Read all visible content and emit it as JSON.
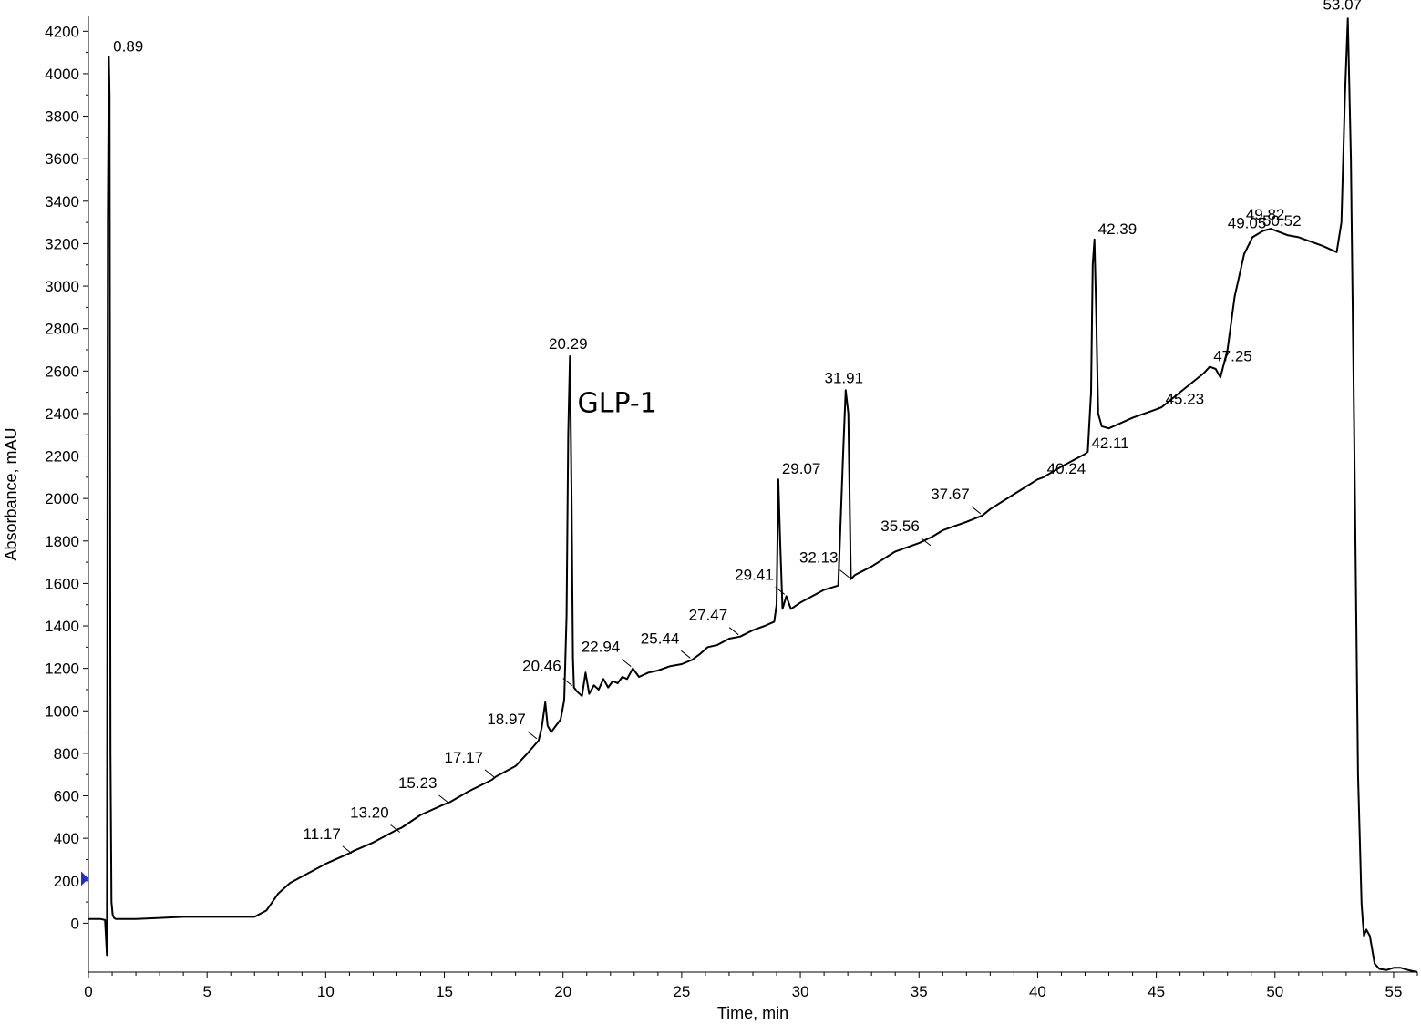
{
  "chart_data": {
    "type": "line",
    "xlabel": "Time, min",
    "ylabel": "Absorbance, mAU",
    "xlim": [
      0,
      56
    ],
    "ylim": [
      -230,
      4270
    ],
    "x_ticks": [
      0,
      5,
      10,
      15,
      20,
      25,
      30,
      35,
      40,
      45,
      50,
      55
    ],
    "y_ticks": [
      0,
      200,
      400,
      600,
      800,
      1000,
      1200,
      1400,
      1600,
      1800,
      2000,
      2200,
      2400,
      2600,
      2800,
      3000,
      3200,
      3400,
      3600,
      3800,
      4000,
      4200
    ],
    "grid": false,
    "line_color": "#000000",
    "marker_color": "#1f2fd0",
    "marker_y": 210,
    "annotation": {
      "text": "GLP-1",
      "x": 20.3,
      "y": 2450
    },
    "peaks": [
      {
        "label": "0.89",
        "x": 0.89,
        "y": 4080
      },
      {
        "label": "11.17",
        "x": 11.17,
        "y": 320
      },
      {
        "label": "13.20",
        "x": 13.2,
        "y": 420
      },
      {
        "label": "15.23",
        "x": 15.23,
        "y": 560
      },
      {
        "label": "17.17",
        "x": 17.17,
        "y": 680
      },
      {
        "label": "18.97",
        "x": 18.97,
        "y": 860
      },
      {
        "label": "20.29",
        "x": 20.29,
        "y": 2670
      },
      {
        "label": "20.46",
        "x": 20.46,
        "y": 1110
      },
      {
        "label": "22.94",
        "x": 22.94,
        "y": 1200
      },
      {
        "label": "25.44",
        "x": 25.44,
        "y": 1240
      },
      {
        "label": "27.47",
        "x": 27.47,
        "y": 1350
      },
      {
        "label": "29.07",
        "x": 29.07,
        "y": 2090
      },
      {
        "label": "29.41",
        "x": 29.41,
        "y": 1540
      },
      {
        "label": "31.91",
        "x": 31.91,
        "y": 2510
      },
      {
        "label": "32.13",
        "x": 32.13,
        "y": 1620
      },
      {
        "label": "35.56",
        "x": 35.56,
        "y": 1770
      },
      {
        "label": "37.67",
        "x": 37.67,
        "y": 1920
      },
      {
        "label": "40.24",
        "x": 40.24,
        "y": 2090
      },
      {
        "label": "42.11",
        "x": 42.11,
        "y": 2210
      },
      {
        "label": "42.39",
        "x": 42.39,
        "y": 3220
      },
      {
        "label": "45.23",
        "x": 45.23,
        "y": 2420
      },
      {
        "label": "47.25",
        "x": 47.25,
        "y": 2620
      },
      {
        "label": "49.05",
        "x": 49.05,
        "y": 3230
      },
      {
        "label": "49.82",
        "x": 49.82,
        "y": 3270
      },
      {
        "label": "50.52",
        "x": 50.52,
        "y": 3240
      },
      {
        "label": "53.07",
        "x": 53.07,
        "y": 4260
      }
    ],
    "series": [
      {
        "x": [
          0,
          0.5,
          0.7,
          0.78,
          0.82,
          0.86,
          0.89,
          0.93,
          0.97,
          1.02,
          1.08,
          1.15,
          1.3,
          1.6,
          2,
          3,
          4,
          5,
          6,
          7,
          7.5,
          8,
          8.5,
          9,
          10,
          11,
          11.17,
          12,
          13,
          13.2,
          14,
          15,
          15.23,
          16,
          17,
          17.17,
          18,
          18.5,
          18.97,
          19.1,
          19.25,
          19.35,
          19.5,
          19.9,
          20.05,
          20.15,
          20.22,
          20.29,
          20.36,
          20.42,
          20.46,
          20.6,
          20.8,
          20.95,
          21.1,
          21.3,
          21.5,
          21.7,
          21.9,
          22.1,
          22.3,
          22.5,
          22.7,
          22.94,
          23.2,
          23.6,
          24,
          24.5,
          25,
          25.44,
          25.8,
          26.1,
          26.5,
          27,
          27.47,
          28,
          28.5,
          28.9,
          29.0,
          29.07,
          29.15,
          29.25,
          29.41,
          29.6,
          30,
          30.5,
          31,
          31.6,
          31.8,
          31.91,
          32.02,
          32.13,
          32.3,
          33,
          34,
          35,
          35.56,
          36,
          37,
          37.67,
          38,
          39,
          40,
          40.24,
          41,
          42,
          42.11,
          42.25,
          42.32,
          42.39,
          42.46,
          42.55,
          42.7,
          43,
          44,
          45,
          45.23,
          46,
          47,
          47.25,
          47.5,
          47.7,
          48,
          48.3,
          48.7,
          49.05,
          49.5,
          49.82,
          50.52,
          51,
          52,
          52.6,
          52.8,
          52.95,
          53.07,
          53.2,
          53.35,
          53.5,
          53.65,
          53.75,
          53.85,
          54.0,
          54.2,
          54.4,
          54.7,
          55,
          55.3,
          55.6,
          56
        ],
        "y": [
          20,
          20,
          15,
          -150,
          3300,
          4080,
          3900,
          800,
          100,
          40,
          25,
          20,
          20,
          20,
          20,
          25,
          30,
          30,
          30,
          30,
          60,
          140,
          190,
          220,
          280,
          330,
          340,
          380,
          440,
          450,
          510,
          560,
          570,
          620,
          675,
          690,
          740,
          800,
          860,
          920,
          1040,
          930,
          900,
          960,
          1050,
          1450,
          2300,
          2670,
          2000,
          1250,
          1110,
          1090,
          1070,
          1180,
          1080,
          1120,
          1100,
          1150,
          1110,
          1140,
          1130,
          1160,
          1150,
          1200,
          1160,
          1180,
          1190,
          1210,
          1220,
          1240,
          1270,
          1300,
          1310,
          1340,
          1350,
          1380,
          1400,
          1420,
          1500,
          2090,
          1800,
          1480,
          1540,
          1480,
          1510,
          1540,
          1570,
          1590,
          2200,
          2510,
          2400,
          1620,
          1640,
          1680,
          1750,
          1790,
          1820,
          1850,
          1890,
          1920,
          1950,
          2020,
          2090,
          2100,
          2150,
          2210,
          2220,
          2500,
          3100,
          3220,
          2900,
          2400,
          2340,
          2330,
          2380,
          2420,
          2430,
          2500,
          2590,
          2620,
          2610,
          2570,
          2700,
          2950,
          3150,
          3230,
          3260,
          3270,
          3240,
          3230,
          3190,
          3160,
          3300,
          3900,
          4260,
          3600,
          2200,
          700,
          90,
          -60,
          -30,
          -60,
          -190,
          -215,
          -220,
          -210,
          -210,
          -220,
          -230
        ]
      }
    ]
  }
}
